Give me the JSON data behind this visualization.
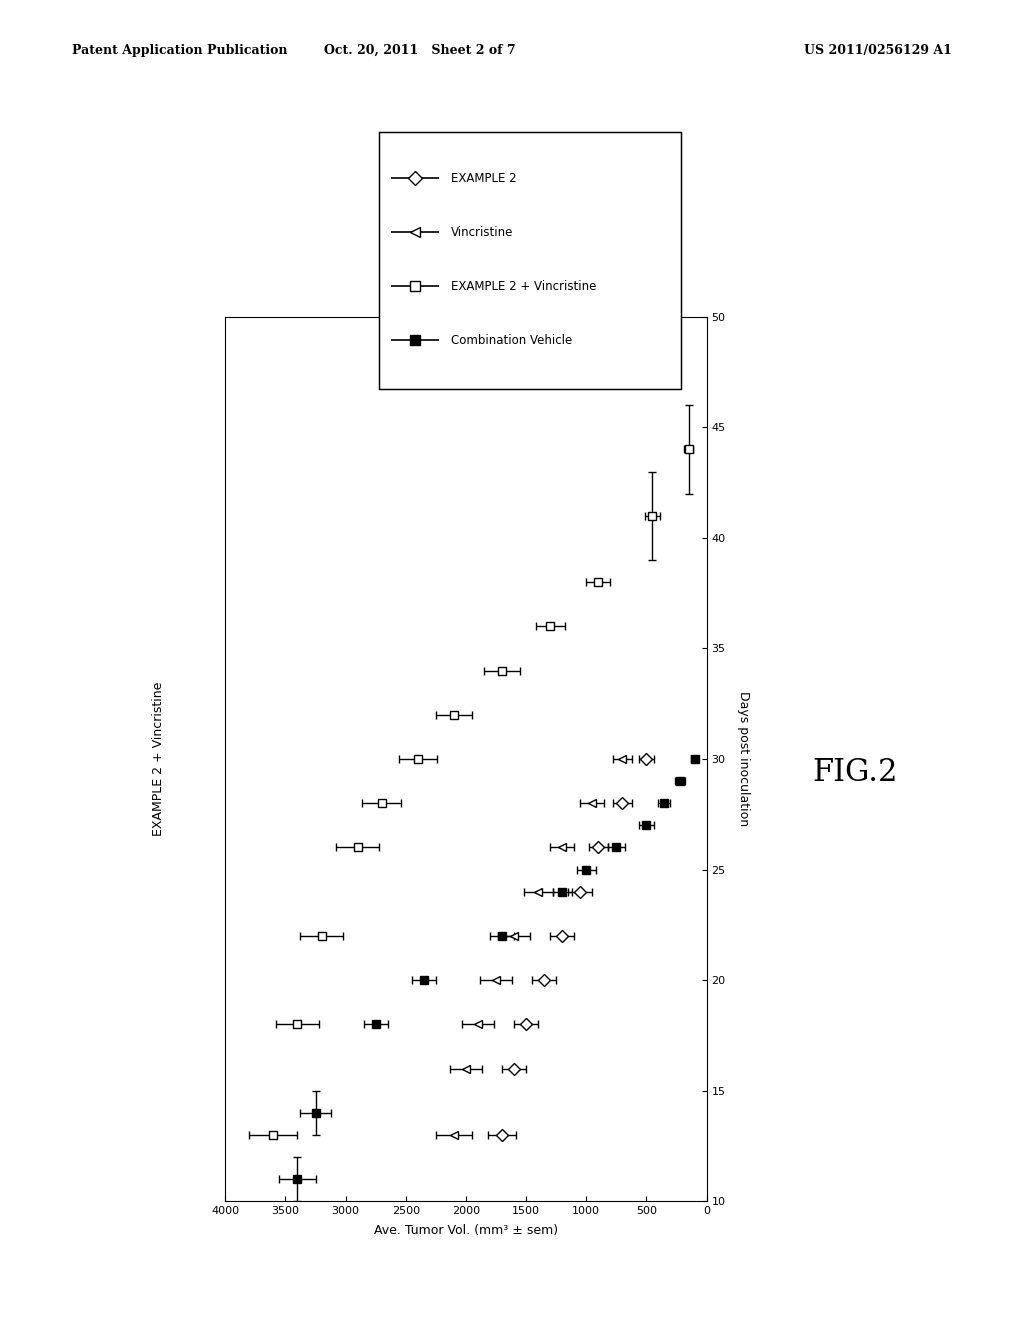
{
  "header_left": "Patent Application Publication",
  "header_center": "Oct. 20, 2011   Sheet 2 of 7",
  "header_right": "US 2011/0256129 A1",
  "title_left": "EXAMPLE 2 + Vincristine",
  "xlabel_bottom": "Ave. Tumor Vol. (mm³ ± sem)",
  "ylabel_right": "Days post inoculation",
  "fig_label": "FIG.2",
  "xlim": [
    4000,
    0
  ],
  "ylim": [
    10,
    50
  ],
  "xticks": [
    4000,
    3500,
    3000,
    2500,
    2000,
    1500,
    1000,
    500,
    0
  ],
  "yticks": [
    10,
    15,
    20,
    25,
    30,
    35,
    40,
    45,
    50
  ],
  "series": [
    {
      "label": "EXAMPLE 2",
      "marker": "D",
      "filled": false,
      "days": [
        13,
        16,
        18,
        20,
        22,
        24,
        26,
        28,
        30
      ],
      "vol": [
        1700,
        1600,
        1500,
        1350,
        1200,
        1050,
        900,
        700,
        500
      ],
      "day_err": [
        0,
        0,
        0,
        0,
        0,
        0,
        0,
        0,
        0
      ],
      "vol_err": [
        120,
        100,
        100,
        100,
        100,
        100,
        80,
        80,
        60
      ]
    },
    {
      "label": "Vincristine",
      "marker": "<",
      "filled": false,
      "days": [
        13,
        16,
        18,
        20,
        22,
        24,
        26,
        28,
        30
      ],
      "vol": [
        2100,
        2000,
        1900,
        1750,
        1600,
        1400,
        1200,
        950,
        700
      ],
      "day_err": [
        0,
        0,
        0,
        0,
        0,
        0,
        0,
        0,
        0
      ],
      "vol_err": [
        150,
        130,
        130,
        130,
        130,
        120,
        100,
        100,
        80
      ]
    },
    {
      "label": "EXAMPLE 2 + Vincristine",
      "marker": "s",
      "filled": false,
      "days": [
        13,
        18,
        22,
        26,
        28,
        30,
        32,
        34,
        36,
        38,
        41,
        44
      ],
      "vol": [
        3600,
        3400,
        3200,
        2900,
        2700,
        2400,
        2100,
        1700,
        1300,
        900,
        450,
        150
      ],
      "day_err": [
        0,
        0,
        0,
        0,
        0,
        0,
        0,
        0,
        0,
        0,
        2,
        2
      ],
      "vol_err": [
        200,
        180,
        180,
        180,
        160,
        160,
        150,
        150,
        120,
        100,
        60,
        40
      ]
    },
    {
      "label": "Combination Vehicle",
      "marker": "s",
      "filled": true,
      "days": [
        11,
        14,
        18,
        20,
        22,
        24,
        25,
        26,
        27,
        28,
        29,
        30
      ],
      "vol": [
        3400,
        3250,
        2750,
        2350,
        1700,
        1200,
        1000,
        750,
        500,
        350,
        220,
        100
      ],
      "day_err": [
        1,
        1,
        0,
        0,
        0,
        0,
        0,
        0,
        0,
        0,
        0,
        0
      ],
      "vol_err": [
        150,
        130,
        100,
        100,
        100,
        80,
        80,
        70,
        60,
        50,
        40,
        30
      ]
    }
  ],
  "legend_items": [
    {
      "label": "EXAMPLE 2",
      "marker": "D",
      "filled": false
    },
    {
      "label": "Vincristine",
      "marker": "<",
      "filled": false
    },
    {
      "label": "EXAMPLE 2 + Vincristine",
      "marker": "s",
      "filled": false
    },
    {
      "label": "Combination Vehicle",
      "marker": "s",
      "filled": true
    }
  ],
  "background_color": "#ffffff"
}
